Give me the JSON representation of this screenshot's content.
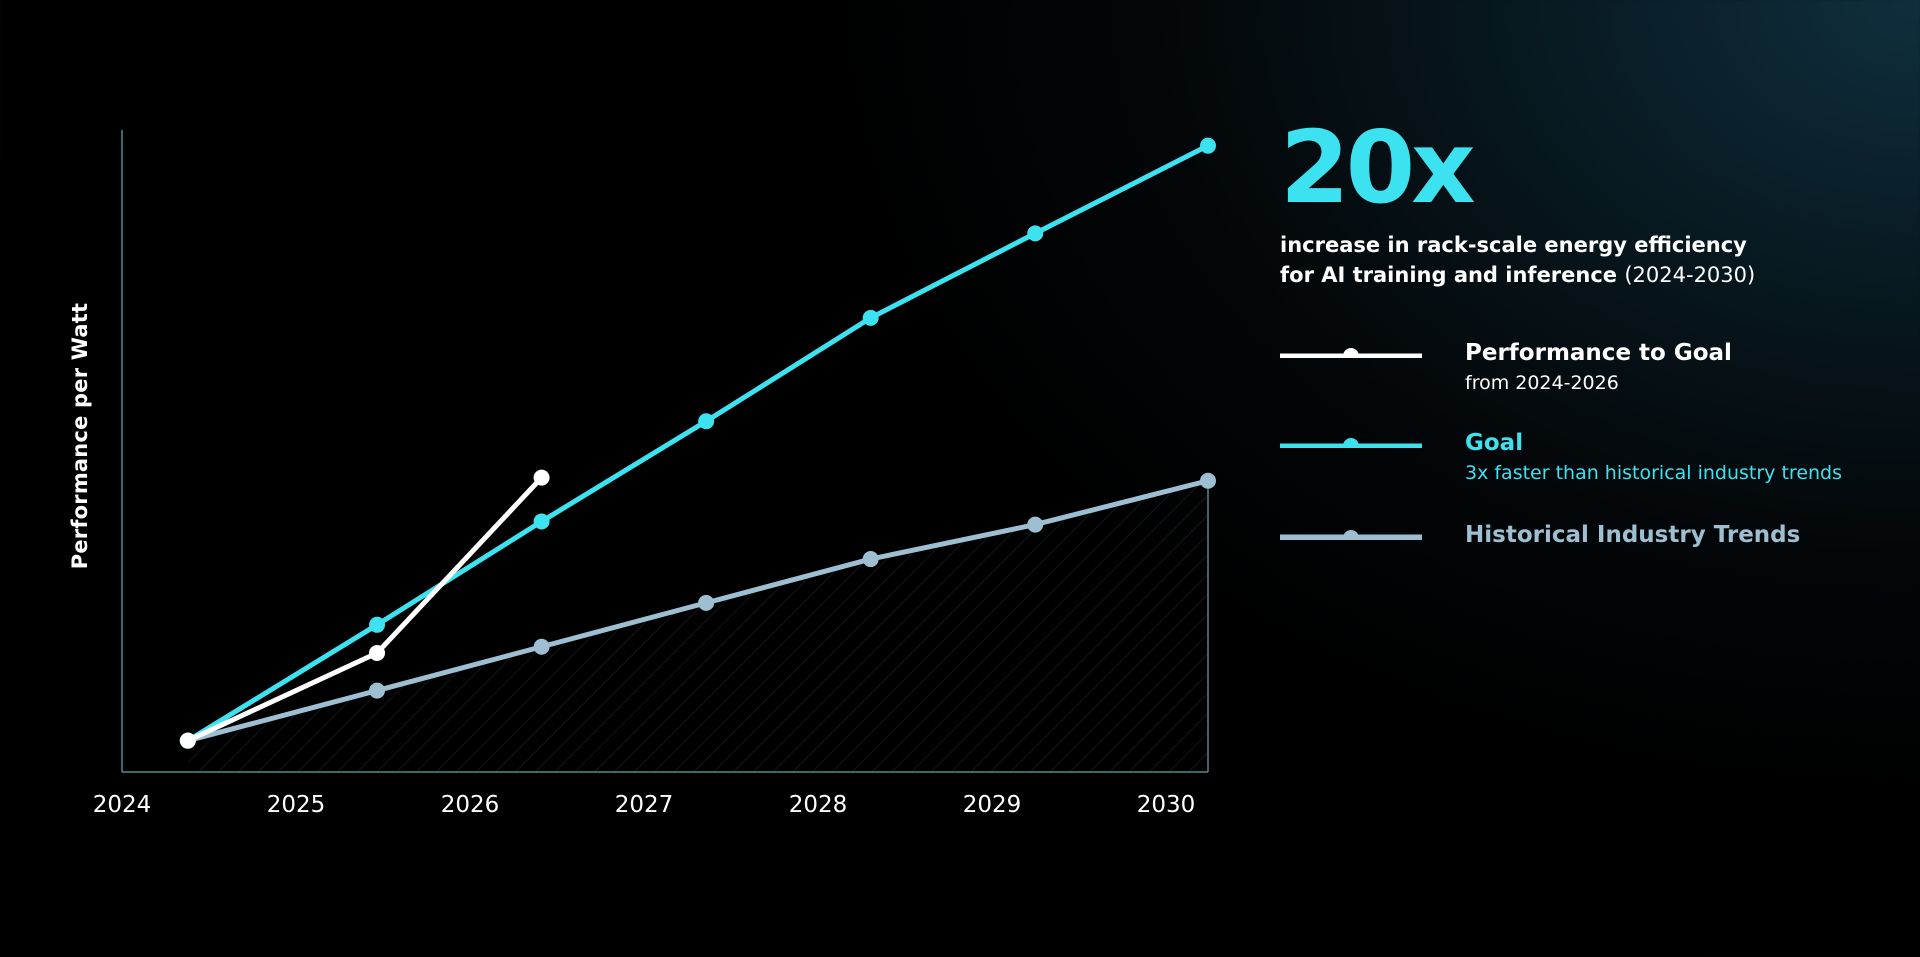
{
  "headline": {
    "value": "20x",
    "subtitle_line1": "increase in rack-scale energy efficiency",
    "subtitle_line2": "for AI training and inference",
    "subtitle_years": "(2024-2030)"
  },
  "legend": [
    {
      "title": "Performance to Goal",
      "subtitle": "from 2024-2026",
      "color": "#ffffff"
    },
    {
      "title": "Goal",
      "subtitle": "3x faster than historical industry trends",
      "color": "#3ce2f0"
    },
    {
      "title": "Historical Industry Trends",
      "subtitle": "",
      "color": "#9dbfd1"
    }
  ],
  "chart_data": {
    "type": "line",
    "title": "",
    "xlabel": "",
    "ylabel": "Performance per Watt",
    "x_ticks": [
      "2024",
      "2025",
      "2026",
      "2027",
      "2028",
      "2029",
      "2030"
    ],
    "xlim": [
      2024,
      2030.6
    ],
    "ylim": [
      0,
      20.5
    ],
    "y_ticks_shown": false,
    "grid": false,
    "legend_position": "right",
    "series": [
      {
        "name": "Performance to Goal",
        "color": "#ffffff",
        "x": [
          2024.4,
          2025.55,
          2026.55
        ],
        "y": [
          1.0,
          3.8,
          9.4
        ]
      },
      {
        "name": "Goal",
        "color": "#3ce2f0",
        "x": [
          2024.4,
          2025.55,
          2026.55,
          2027.55,
          2028.55,
          2029.55,
          2030.6
        ],
        "y": [
          1.0,
          4.7,
          8.0,
          11.2,
          14.5,
          17.2,
          20.0
        ]
      },
      {
        "name": "Historical Industry Trends",
        "color": "#9dbfd1",
        "fill": "hatched",
        "x": [
          2024.4,
          2025.55,
          2026.55,
          2027.55,
          2028.55,
          2029.55,
          2030.6
        ],
        "y": [
          1.0,
          2.6,
          4.0,
          5.4,
          6.8,
          7.9,
          9.3
        ]
      }
    ]
  }
}
